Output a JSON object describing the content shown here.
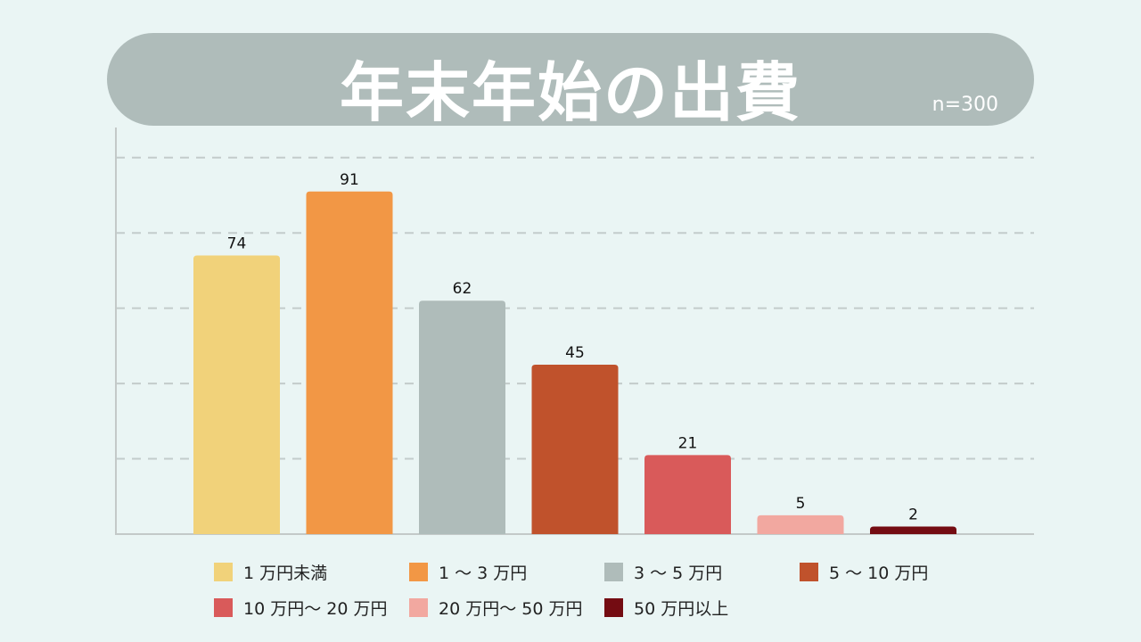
{
  "chart_data": {
    "type": "bar",
    "title": "年末年始の出費",
    "subtitle": "n=300",
    "categories": [
      "1万円未満",
      "1〜3万円",
      "3〜5万円",
      "5〜10万円",
      "10万円〜20万円",
      "20万円〜50万円",
      "50万円以上"
    ],
    "values": [
      74,
      91,
      62,
      45,
      21,
      5,
      2
    ],
    "colors": [
      "#f1d27a",
      "#f29745",
      "#afbcba",
      "#c0522c",
      "#d95a5a",
      "#f2a8a0",
      "#740c12"
    ],
    "legend_labels": [
      "1 万円未満",
      "1 〜 3 万円",
      "3 〜 5 万円",
      "5 〜 10 万円",
      "10 万円〜 20 万円",
      "20 万円〜 50 万円",
      "50 万円以上"
    ],
    "ylim": [
      0,
      108
    ],
    "gridlines": [
      20,
      40,
      60,
      80,
      100
    ],
    "grid": true,
    "xlabel": "",
    "ylabel": "",
    "legend_position": "bottom"
  }
}
